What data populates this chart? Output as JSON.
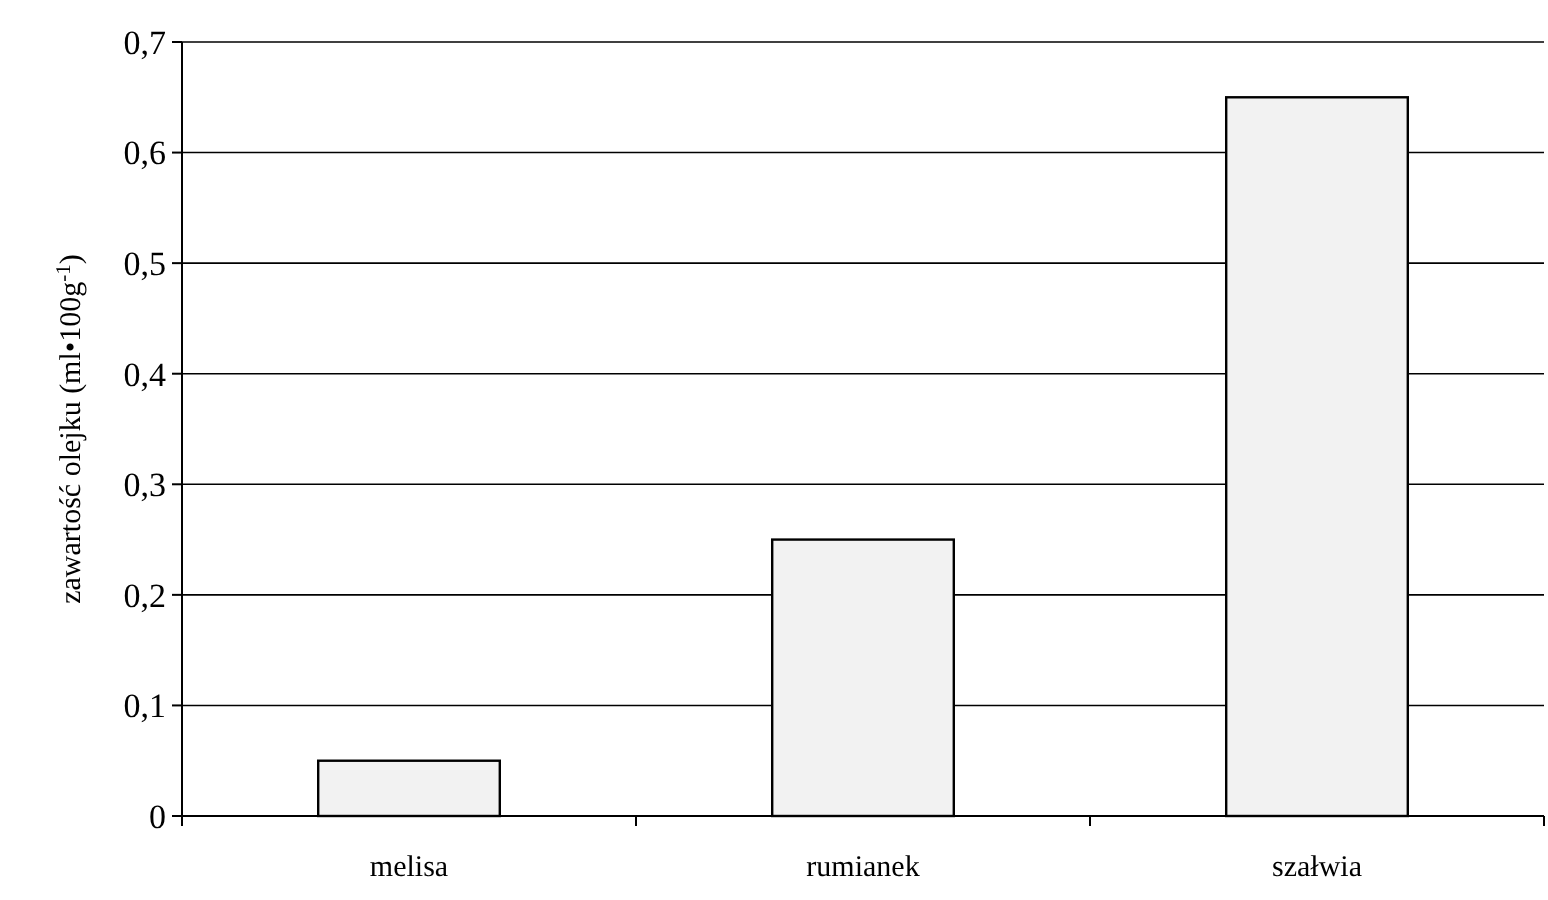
{
  "chart_data": {
    "type": "bar",
    "ylabel": "zawartość olejku (ml•100g$^{-1}$)",
    "categories": [
      "melisa",
      "rumianek",
      "szałwia"
    ],
    "values": [
      0.05,
      0.25,
      0.65
    ],
    "color": "#f2f2f2",
    "ylim": [
      0,
      0.7
    ],
    "yticks": [
      {
        "value": 0,
        "label": "0"
      },
      {
        "value": 0.1,
        "label": "0,1"
      },
      {
        "value": 0.2,
        "label": "0,2"
      },
      {
        "value": 0.3,
        "label": "0,3"
      },
      {
        "value": 0.4,
        "label": "0,4"
      },
      {
        "value": 0.5,
        "label": "0,5"
      },
      {
        "value": 0.6,
        "label": "0,6"
      },
      {
        "value": 0.7,
        "label": "0,7"
      }
    ],
    "grid": "y"
  }
}
